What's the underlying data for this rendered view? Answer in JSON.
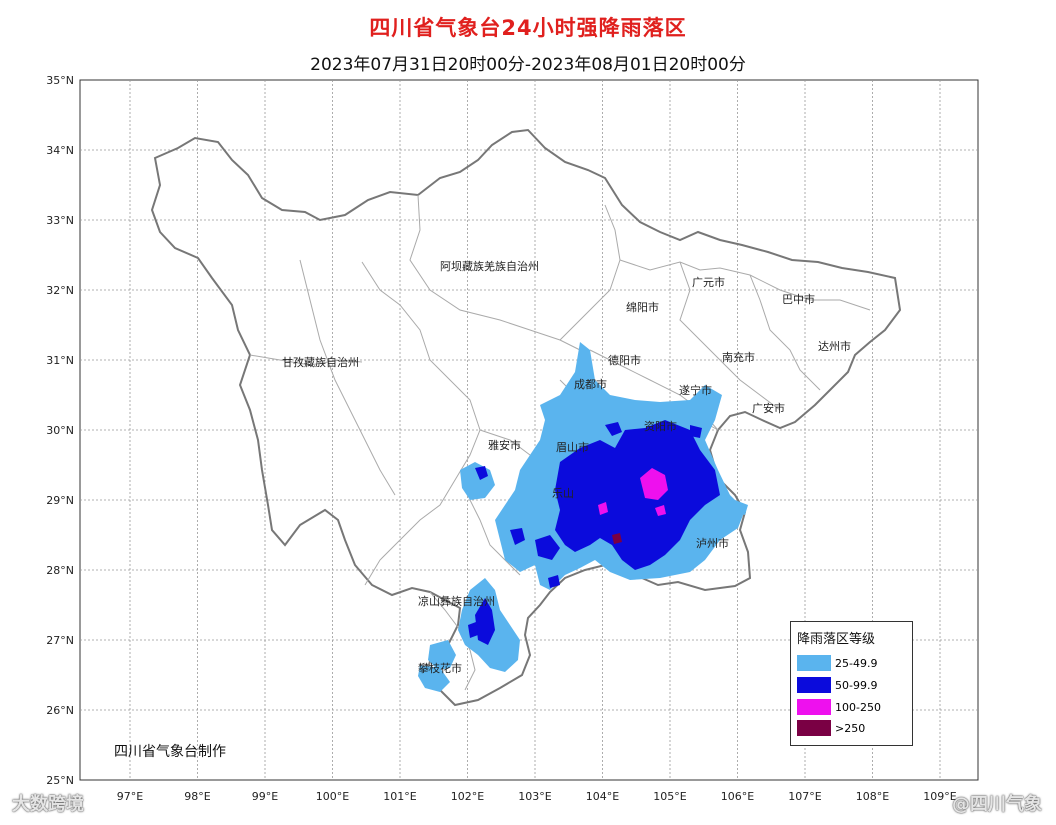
{
  "title": "四川省气象台24小时强降雨落区",
  "subtitle": "2023年07月31日20时00分-2023年08月01日20时00分",
  "credit": "四川省气象台制作",
  "lat_labels": [
    "35°N",
    "34°N",
    "33°N",
    "32°N",
    "31°N",
    "30°N",
    "29°N",
    "28°N",
    "27°N",
    "26°N",
    "25°N"
  ],
  "lon_labels": [
    "97°E",
    "98°E",
    "99°E",
    "100°E",
    "101°E",
    "102°E",
    "103°E",
    "104°E",
    "105°E",
    "106°E",
    "107°E",
    "108°E",
    "109°E"
  ],
  "places": [
    {
      "name": "阿坝藏族羌族自治州"
    },
    {
      "name": "甘孜藏族自治州"
    },
    {
      "name": "绵阳市"
    },
    {
      "name": "广元市"
    },
    {
      "name": "巴中市"
    },
    {
      "name": "达州市"
    },
    {
      "name": "南充市"
    },
    {
      "name": "德阳市"
    },
    {
      "name": "成都市"
    },
    {
      "name": "遂宁市"
    },
    {
      "name": "广安市"
    },
    {
      "name": "雅安市"
    },
    {
      "name": "眉山市"
    },
    {
      "name": "资阳市"
    },
    {
      "name": "乐山"
    },
    {
      "name": "泸州市"
    },
    {
      "name": "凉山彝族自治州"
    },
    {
      "name": "攀枝花市"
    }
  ],
  "legend": {
    "title": "降雨落区等级",
    "items": [
      {
        "label": "25-49.9",
        "color": "#5ab4ee"
      },
      {
        "label": "50-99.9",
        "color": "#0b0bdc"
      },
      {
        "label": "100-250",
        "color": "#ee10ee"
      },
      {
        "label": ">250",
        "color": "#7a0044"
      }
    ]
  },
  "watermarks": {
    "left": "大数跨境",
    "right": "@四川气象"
  }
}
